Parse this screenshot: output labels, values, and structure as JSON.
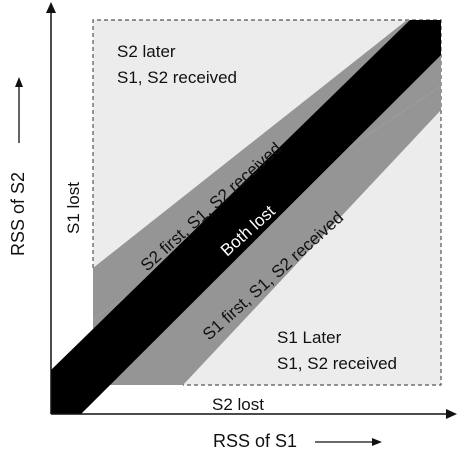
{
  "diagram": {
    "regions": {
      "s2_later": [
        "S2 later",
        "S1, S2 received"
      ],
      "s1_later": [
        "S1 Later",
        "S1, S2 received"
      ],
      "s2_first": "S2 first, S1, S2 received",
      "s1_first": "S1 first, S1, S2 received",
      "both_lost": "Both lost",
      "s1_lost": "S1 lost",
      "s2_lost": "S2 lost"
    },
    "axes": {
      "x_label": "RSS of S1",
      "y_label": "RSS of S2"
    },
    "colors": {
      "light_region": "#ececec",
      "mid_band": "#959595",
      "dark_band": "#000000",
      "outline": "#555555"
    }
  }
}
